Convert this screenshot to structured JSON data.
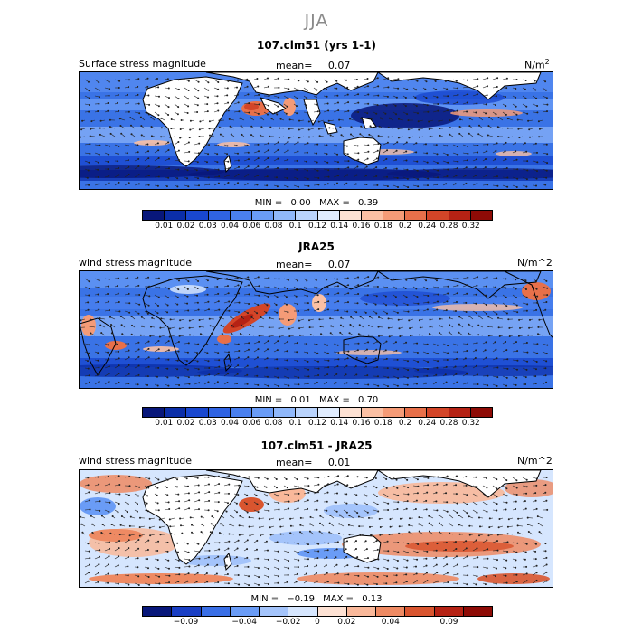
{
  "season": "JJA",
  "panels": [
    {
      "title": "107.clm51 (yrs 1-1)",
      "variable": "Surface stress magnitude",
      "mean_label": "mean=",
      "mean_value": "0.07",
      "units": "N/m",
      "units_sup": "2",
      "min_label": "MIN =",
      "min_value": "0.00",
      "max_label": "MAX =",
      "max_value": "0.39",
      "colorbar_labels": [
        "0.01",
        "0.02",
        "0.03",
        "0.04",
        "0.06",
        "0.08",
        "0.1",
        "0.12",
        "0.14",
        "0.16",
        "0.18",
        "0.2",
        "0.24",
        "0.28",
        "0.32"
      ]
    },
    {
      "title": "JRA25",
      "variable": "wind stress magnitude",
      "mean_label": "mean=",
      "mean_value": "0.07",
      "units": "N/m^2",
      "min_label": "MIN =",
      "min_value": "0.01",
      "max_label": "MAX =",
      "max_value": "0.70",
      "colorbar_labels": [
        "0.01",
        "0.02",
        "0.03",
        "0.04",
        "0.06",
        "0.08",
        "0.1",
        "0.12",
        "0.14",
        "0.16",
        "0.18",
        "0.2",
        "0.24",
        "0.28",
        "0.32"
      ]
    },
    {
      "title": "107.clm51 - JRA25",
      "variable": "wind stress magnitude",
      "mean_label": "mean=",
      "mean_value": "0.01",
      "units": "N/m^2",
      "min_label": "MIN =",
      "min_value": "−0.19",
      "max_label": "MAX =",
      "max_value": "0.13",
      "colorbar_labels": [
        "−0.09",
        "−0.04",
        "−0.02",
        "0",
        "0.02",
        "0.04",
        "0.09"
      ]
    }
  ],
  "colors": {
    "seq": [
      "#08177a",
      "#0b2ea8",
      "#1947cf",
      "#2f63e3",
      "#4a80ef",
      "#6a9cf6",
      "#90b8fa",
      "#b9d3fc",
      "#e0ecfe",
      "#fde1d3",
      "#fbc0a4",
      "#f59b77",
      "#e8704a",
      "#d34528",
      "#b52214",
      "#8e0b06"
    ],
    "div": [
      "#08177a",
      "#1a3fc4",
      "#3a6fe6",
      "#6a9cf6",
      "#a4c4fb",
      "#d6e6fe",
      "#fde1d3",
      "#f9b89a",
      "#ee8a63",
      "#d9552f",
      "#b52214",
      "#8e0b06"
    ]
  }
}
